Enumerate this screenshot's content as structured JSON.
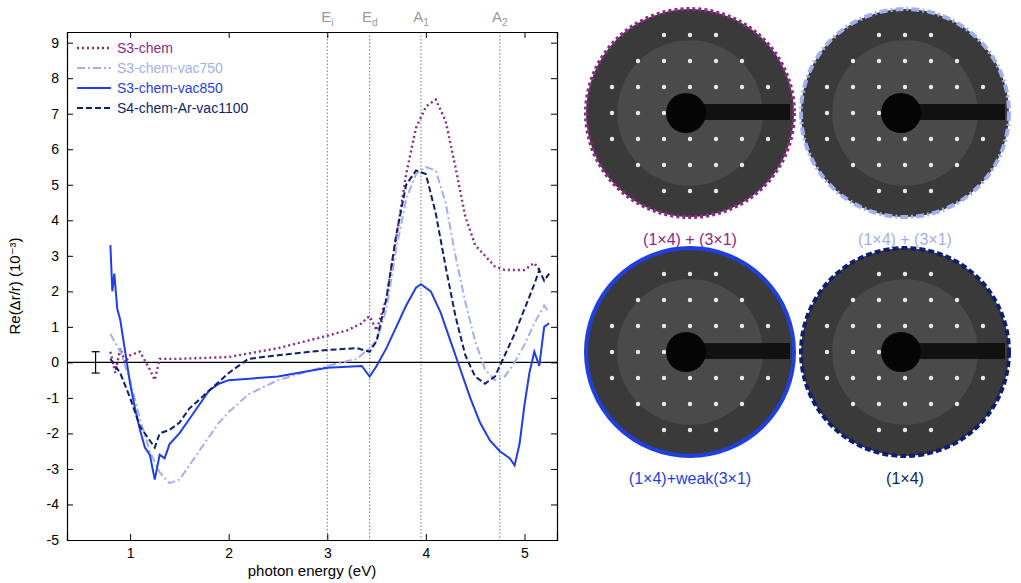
{
  "chart_data": {
    "type": "line",
    "xlabel": "photon energy (eV)",
    "ylabel": "Re(Δr/r) (10⁻³)",
    "xlim": [
      0.36,
      5.33
    ],
    "ylim": [
      -5,
      9.3
    ],
    "xticks": [
      1,
      2,
      3,
      4,
      5
    ],
    "yticks": [
      -5,
      -4,
      -3,
      -2,
      -1,
      0,
      1,
      2,
      3,
      4,
      5,
      6,
      7,
      8,
      9
    ],
    "legend": "upper left",
    "reference_line": 0,
    "error_bar": {
      "x": 0.65,
      "y": 0,
      "error": 0.3
    },
    "vlines": [
      {
        "x": 3.0,
        "label": "E",
        "sub": "i"
      },
      {
        "x": 3.43,
        "label": "E",
        "sub": "d"
      },
      {
        "x": 3.95,
        "label": "A",
        "sub": "1"
      },
      {
        "x": 4.75,
        "label": "A",
        "sub": "2"
      }
    ],
    "series": [
      {
        "name": "S3-chem",
        "color": "#8a2a86",
        "line_style": "dotted",
        "x": [
          0.8,
          0.85,
          0.9,
          0.95,
          1.0,
          1.1,
          1.2,
          1.25,
          1.3,
          1.5,
          2.0,
          2.5,
          3.0,
          3.2,
          3.35,
          3.4,
          3.43,
          3.5,
          3.6,
          3.7,
          3.8,
          3.9,
          4.0,
          4.1,
          4.2,
          4.3,
          4.4,
          4.5,
          4.6,
          4.7,
          4.8,
          4.9,
          5.0,
          5.1,
          5.15
        ],
        "values": [
          0.3,
          -0.3,
          0.4,
          0.0,
          0.2,
          0.3,
          -0.2,
          -0.5,
          0.1,
          0.1,
          0.15,
          0.4,
          0.75,
          0.9,
          1.1,
          1.25,
          1.3,
          0.9,
          1.8,
          3.5,
          5.3,
          6.6,
          7.2,
          7.4,
          6.8,
          5.5,
          4.1,
          3.3,
          3.0,
          2.7,
          2.6,
          2.6,
          2.6,
          2.8,
          2.6
        ]
      },
      {
        "name": "S3-chem-vac750",
        "color": "#a3aef0",
        "line_style": "dashdot",
        "x": [
          0.8,
          0.9,
          1.0,
          1.1,
          1.2,
          1.3,
          1.4,
          1.5,
          1.6,
          1.7,
          1.8,
          1.9,
          2.0,
          2.2,
          2.5,
          3.0,
          3.3,
          3.43,
          3.5,
          3.6,
          3.7,
          3.8,
          3.9,
          4.0,
          4.1,
          4.2,
          4.3,
          4.4,
          4.5,
          4.6,
          4.7,
          4.8,
          4.9,
          5.0,
          5.1,
          5.2,
          5.25
        ],
        "values": [
          0.8,
          0.3,
          -0.5,
          -1.6,
          -2.5,
          -3.1,
          -3.4,
          -3.3,
          -2.9,
          -2.5,
          -2.1,
          -1.7,
          -1.4,
          -0.9,
          -0.5,
          -0.1,
          0.1,
          0.4,
          0.6,
          1.5,
          3.2,
          4.6,
          5.3,
          5.5,
          5.4,
          4.5,
          3.0,
          1.7,
          0.6,
          -0.2,
          -0.5,
          -0.4,
          0.0,
          0.5,
          1.1,
          1.6,
          1.4
        ]
      },
      {
        "name": "S3-chem-vac850",
        "color": "#1f3fe0",
        "line_style": "solid",
        "x": [
          0.8,
          0.82,
          0.84,
          0.87,
          0.9,
          0.95,
          1.0,
          1.05,
          1.1,
          1.15,
          1.2,
          1.25,
          1.3,
          1.35,
          1.4,
          1.5,
          1.6,
          1.7,
          1.8,
          1.9,
          2.0,
          2.5,
          3.0,
          3.35,
          3.43,
          3.5,
          3.6,
          3.7,
          3.8,
          3.9,
          3.95,
          4.05,
          4.15,
          4.25,
          4.35,
          4.45,
          4.55,
          4.65,
          4.75,
          4.85,
          4.9,
          4.95,
          5.0,
          5.05,
          5.1,
          5.15,
          5.2,
          5.25
        ],
        "values": [
          3.3,
          2.0,
          2.5,
          1.5,
          1.2,
          0.3,
          -0.6,
          -1.3,
          -1.9,
          -2.4,
          -2.6,
          -3.3,
          -2.6,
          -2.7,
          -2.3,
          -2.0,
          -1.6,
          -1.2,
          -0.8,
          -0.6,
          -0.5,
          -0.4,
          -0.15,
          -0.1,
          -0.4,
          -0.1,
          0.4,
          1.0,
          1.6,
          2.1,
          2.2,
          2.0,
          1.4,
          0.6,
          -0.2,
          -1.0,
          -1.7,
          -2.2,
          -2.5,
          -2.7,
          -2.9,
          -2.3,
          -1.2,
          -0.3,
          0.3,
          -0.1,
          1.0,
          1.1
        ]
      },
      {
        "name": "S4-chem-Ar-vac1100",
        "color": "#0d1f6e",
        "line_style": "dashed",
        "x": [
          0.8,
          0.9,
          1.0,
          1.1,
          1.2,
          1.25,
          1.3,
          1.4,
          1.5,
          1.6,
          1.8,
          2.0,
          2.2,
          2.5,
          3.0,
          3.3,
          3.43,
          3.5,
          3.6,
          3.7,
          3.8,
          3.9,
          4.0,
          4.1,
          4.2,
          4.3,
          4.4,
          4.5,
          4.6,
          4.7,
          4.8,
          4.9,
          5.0,
          5.1,
          5.15,
          5.2,
          5.25
        ],
        "values": [
          0.1,
          -0.3,
          -1.0,
          -1.8,
          -2.2,
          -2.4,
          -2.0,
          -1.9,
          -1.7,
          -1.3,
          -0.8,
          -0.3,
          0.1,
          0.2,
          0.35,
          0.4,
          0.3,
          0.6,
          1.8,
          3.6,
          5.0,
          5.4,
          5.3,
          4.2,
          2.7,
          1.3,
          0.2,
          -0.4,
          -0.6,
          -0.4,
          0.2,
          0.8,
          1.5,
          2.2,
          2.6,
          2.3,
          2.5
        ]
      }
    ]
  },
  "leed_images": [
    {
      "caption": "(1×4) + (3×1)",
      "color": "#8a2a86",
      "line_style": "dotted"
    },
    {
      "caption": "(1×4) + (3×1)",
      "color": "#a3aef0",
      "line_style": "dashdot"
    },
    {
      "caption": "(1×4)+weak(3×1)",
      "color": "#1f3fe0",
      "line_style": "solid"
    },
    {
      "caption": "(1×4)",
      "color": "#0d1f6e",
      "line_style": "dashed"
    }
  ]
}
